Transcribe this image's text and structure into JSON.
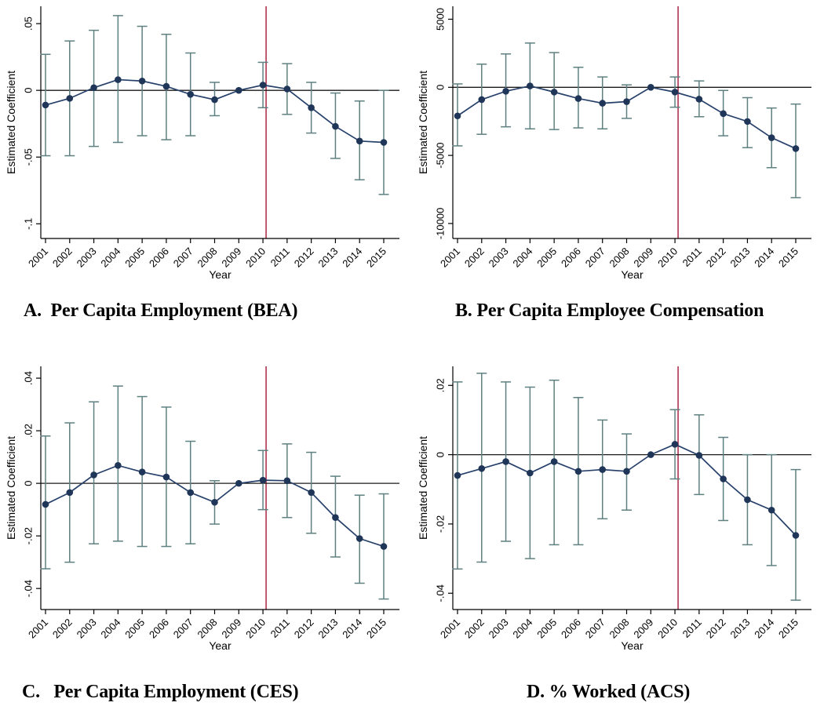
{
  "figure": {
    "background": "#ffffff",
    "colors": {
      "marker": "#1f3659",
      "line": "#27416b",
      "ci": "#5f8080",
      "vline": "#b03450",
      "zero_line": "#1a1a1a",
      "axis": "#000000",
      "text": "#000000"
    }
  },
  "chart_data": [
    {
      "id": "A",
      "type": "line",
      "title": "A.  Per Capita Employment (BEA)",
      "xlabel": "Year",
      "ylabel": "Estimated Coefficient",
      "legend": "none",
      "grid": "off",
      "x": [
        2001,
        2002,
        2003,
        2004,
        2005,
        2006,
        2007,
        2008,
        2009,
        2010,
        2011,
        2012,
        2013,
        2014,
        2015
      ],
      "values": [
        -0.011,
        -0.006,
        0.002,
        0.008,
        0.007,
        0.003,
        -0.003,
        -0.007,
        0.0,
        0.004,
        0.001,
        -0.013,
        -0.027,
        -0.038,
        -0.039
      ],
      "ci_low": [
        -0.049,
        -0.049,
        -0.042,
        -0.039,
        -0.034,
        -0.037,
        -0.034,
        -0.019,
        0.0,
        -0.013,
        -0.018,
        -0.032,
        -0.051,
        -0.067,
        -0.078
      ],
      "ci_high": [
        0.027,
        0.037,
        0.045,
        0.056,
        0.048,
        0.042,
        0.028,
        0.006,
        0.0,
        0.021,
        0.02,
        0.006,
        -0.002,
        -0.008,
        0.0
      ],
      "yticks": [
        0.05,
        0,
        -0.05,
        -0.1
      ],
      "ytick_labels": [
        ".05",
        "0",
        "-.05",
        "-.1"
      ],
      "ylim": [
        -0.111,
        0.063
      ],
      "zero_line": 0,
      "vline_x": 2010
    },
    {
      "id": "B",
      "type": "line",
      "title": "B. Per Capita Employee Compensation",
      "xlabel": "Year",
      "ylabel": "Estimated Coefficient",
      "legend": "none",
      "grid": "off",
      "x": [
        2001,
        2002,
        2003,
        2004,
        2005,
        2006,
        2007,
        2008,
        2009,
        2010,
        2011,
        2012,
        2013,
        2014,
        2015
      ],
      "values": [
        -2100,
        -900,
        -290,
        100,
        -350,
        -820,
        -1170,
        -1050,
        0,
        -350,
        -870,
        -1930,
        -2510,
        -3700,
        -4500
      ],
      "ci_low": [
        -4300,
        -3450,
        -2900,
        -3050,
        -3100,
        -2980,
        -3050,
        -2280,
        0,
        -1460,
        -2160,
        -3560,
        -4430,
        -5900,
        -8100
      ],
      "ci_high": [
        250,
        1700,
        2450,
        3250,
        2550,
        1470,
        760,
        180,
        0,
        760,
        470,
        -230,
        -760,
        -1520,
        -1230
      ],
      "yticks": [
        5000,
        0,
        -5000,
        -10000
      ],
      "ytick_labels": [
        "5000",
        "0",
        "-5000",
        "-10000"
      ],
      "ylim": [
        -11100,
        5950
      ],
      "zero_line": 0,
      "vline_x": 2010
    },
    {
      "id": "C",
      "type": "line",
      "title": "C.   Per Capita Employment (CES)",
      "xlabel": "Year",
      "ylabel": "Estimated Coefficient",
      "legend": "none",
      "grid": "off",
      "x": [
        2001,
        2002,
        2003,
        2004,
        2005,
        2006,
        2007,
        2008,
        2009,
        2010,
        2011,
        2012,
        2013,
        2014,
        2015
      ],
      "values": [
        -0.008,
        -0.0035,
        0.0032,
        0.0068,
        0.0043,
        0.0024,
        -0.0035,
        -0.0072,
        0.0,
        0.0012,
        0.001,
        -0.0035,
        -0.013,
        -0.021,
        -0.024
      ],
      "ci_low": [
        -0.0325,
        -0.03,
        -0.023,
        -0.022,
        -0.024,
        -0.024,
        -0.023,
        -0.0155,
        0.0,
        -0.01,
        -0.013,
        -0.019,
        -0.028,
        -0.038,
        -0.044
      ],
      "ci_high": [
        0.018,
        0.023,
        0.031,
        0.037,
        0.033,
        0.029,
        0.016,
        0.001,
        0.0,
        0.0125,
        0.015,
        0.0118,
        0.0027,
        -0.0045,
        -0.004
      ],
      "yticks": [
        0.04,
        0.02,
        0,
        -0.02,
        -0.04
      ],
      "ytick_labels": [
        ".04",
        ".02",
        "0",
        "-.02",
        "-.04"
      ],
      "ylim": [
        -0.048,
        0.0445
      ],
      "zero_line": 0,
      "vline_x": 2010
    },
    {
      "id": "D",
      "type": "line",
      "title": "D. % Worked (ACS)",
      "xlabel": "Year",
      "ylabel": "Estimated Coefficient",
      "legend": "none",
      "grid": "off",
      "x": [
        2001,
        2002,
        2003,
        2004,
        2005,
        2006,
        2007,
        2008,
        2009,
        2010,
        2011,
        2012,
        2013,
        2014,
        2015
      ],
      "values": [
        -0.006,
        -0.004,
        -0.002,
        -0.0053,
        -0.002,
        -0.0048,
        -0.0043,
        -0.0048,
        0.0,
        0.003,
        -0.0002,
        -0.007,
        -0.013,
        -0.016,
        -0.0233
      ],
      "ci_low": [
        -0.033,
        -0.031,
        -0.025,
        -0.03,
        -0.026,
        -0.026,
        -0.0185,
        -0.016,
        0.0,
        -0.007,
        -0.0115,
        -0.019,
        -0.026,
        -0.032,
        -0.042
      ],
      "ci_high": [
        0.021,
        0.0235,
        0.021,
        0.0195,
        0.0215,
        0.0165,
        0.01,
        0.006,
        0.0,
        0.013,
        0.0115,
        0.005,
        0.0,
        0.0,
        -0.0043
      ],
      "yticks": [
        0.02,
        0,
        -0.02,
        -0.04
      ],
      "ytick_labels": [
        ".02",
        "0",
        "-.02",
        "-.04"
      ],
      "ylim": [
        -0.0447,
        0.0255
      ],
      "zero_line": 0,
      "vline_x": 2010
    }
  ]
}
